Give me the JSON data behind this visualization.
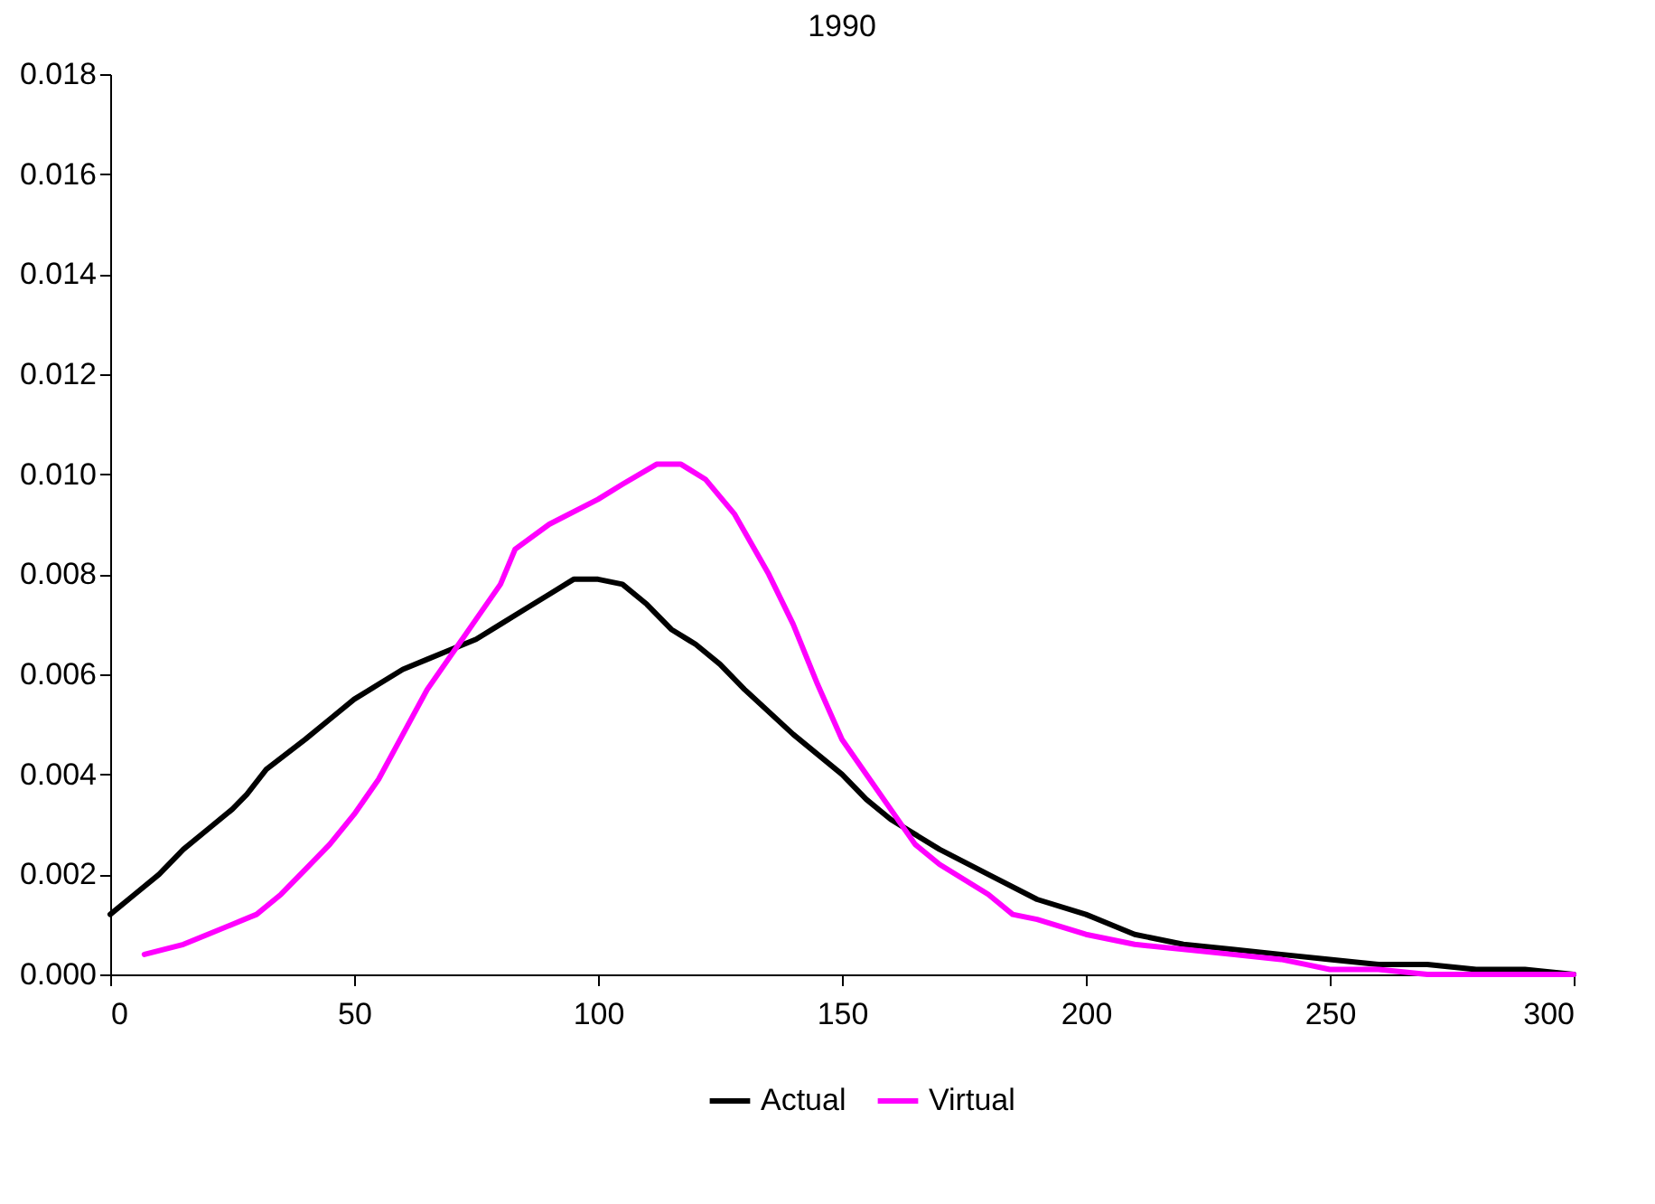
{
  "chart_data": {
    "type": "line",
    "title": "1990",
    "xlim": [
      0,
      300
    ],
    "xticks": [
      0,
      50,
      100,
      150,
      200,
      250,
      300
    ],
    "ylim": [
      0,
      0.018
    ],
    "yticks": [
      {
        "value": 0,
        "label": "0.000"
      },
      {
        "value": 0.002,
        "label": "0.002"
      },
      {
        "value": 0.004,
        "label": "0.004"
      },
      {
        "value": 0.006,
        "label": "0.006"
      },
      {
        "value": 0.008,
        "label": "0.008"
      },
      {
        "value": 0.01,
        "label": "0.010"
      },
      {
        "value": 0.012,
        "label": "0.012"
      },
      {
        "value": 0.014,
        "label": "0.014"
      },
      {
        "value": 0.016,
        "label": "0.016"
      },
      {
        "value": 0.018,
        "label": "0.018"
      }
    ],
    "grid": false,
    "legend": "bottom",
    "marker": "none",
    "line_style": "solid",
    "series": [
      {
        "name": "Actual",
        "color": "#000000",
        "x": [
          0,
          5,
          10,
          15,
          20,
          25,
          28,
          32,
          40,
          45,
          50,
          55,
          60,
          65,
          70,
          75,
          80,
          85,
          90,
          95,
          100,
          105,
          110,
          115,
          120,
          125,
          130,
          140,
          150,
          155,
          160,
          170,
          180,
          190,
          200,
          210,
          220,
          230,
          240,
          250,
          260,
          270,
          280,
          290,
          300
        ],
        "values": [
          0.0012,
          0.0016,
          0.002,
          0.0025,
          0.0029,
          0.0033,
          0.0036,
          0.0041,
          0.0047,
          0.0051,
          0.0055,
          0.0058,
          0.0061,
          0.0063,
          0.0065,
          0.0067,
          0.007,
          0.0073,
          0.0076,
          0.0079,
          0.0079,
          0.0078,
          0.0074,
          0.0069,
          0.0066,
          0.0062,
          0.0057,
          0.0048,
          0.004,
          0.0035,
          0.0031,
          0.0025,
          0.002,
          0.0015,
          0.0012,
          0.0008,
          0.0006,
          0.0005,
          0.0004,
          0.0003,
          0.0002,
          0.0002,
          0.0001,
          0.0001,
          0.0
        ]
      },
      {
        "name": "Virtual",
        "color": "#ff00ff",
        "x": [
          7,
          15,
          20,
          25,
          30,
          35,
          40,
          45,
          50,
          55,
          60,
          65,
          70,
          75,
          80,
          83,
          90,
          100,
          105,
          112,
          117,
          122,
          128,
          135,
          140,
          145,
          150,
          155,
          160,
          165,
          170,
          180,
          185,
          190,
          200,
          210,
          220,
          230,
          240,
          245,
          250,
          260,
          270,
          300
        ],
        "values": [
          0.0004,
          0.0006,
          0.0008,
          0.001,
          0.0012,
          0.0016,
          0.0021,
          0.0026,
          0.0032,
          0.0039,
          0.0048,
          0.0057,
          0.0064,
          0.0071,
          0.0078,
          0.0085,
          0.009,
          0.0095,
          0.0098,
          0.0102,
          0.0102,
          0.0099,
          0.0092,
          0.008,
          0.007,
          0.0058,
          0.0047,
          0.004,
          0.0033,
          0.0026,
          0.0022,
          0.0016,
          0.0012,
          0.0011,
          0.0008,
          0.0006,
          0.0005,
          0.0004,
          0.0003,
          0.0002,
          0.0001,
          0.0001,
          0.0,
          0.0
        ]
      }
    ]
  }
}
